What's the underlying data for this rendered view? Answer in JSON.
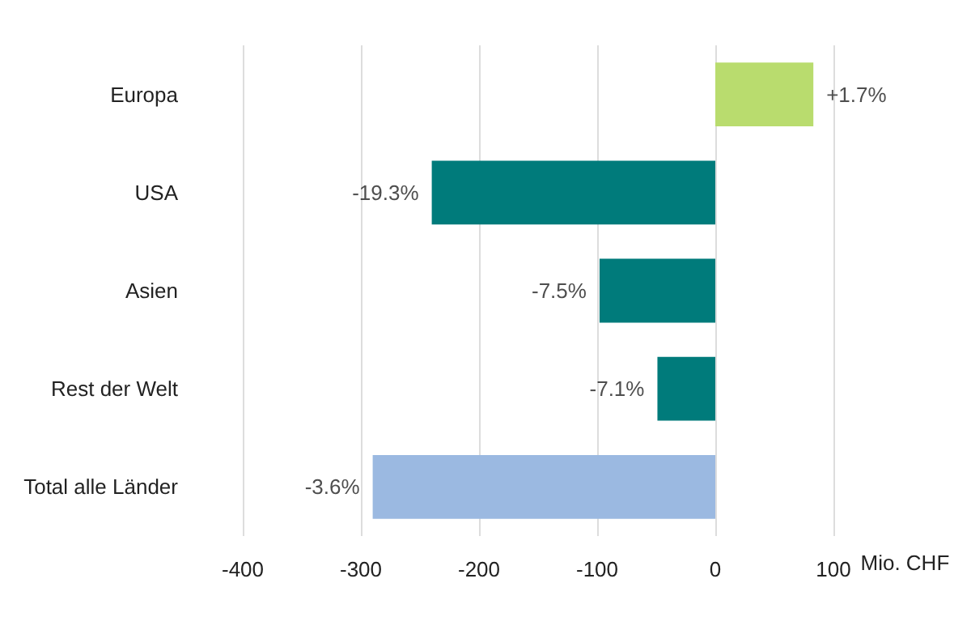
{
  "chart_data": {
    "type": "bar",
    "orientation": "horizontal",
    "categories": [
      "Europa",
      "USA",
      "Asien",
      "Rest der Welt",
      "Total alle Länder"
    ],
    "values": [
      83,
      -240,
      -98,
      -49,
      -290
    ],
    "colors": [
      "#b9dc6e",
      "#007b7b",
      "#007b7b",
      "#007b7b",
      "#9bb9e1"
    ],
    "annotations": [
      {
        "text": "+1.7%",
        "x": 83,
        "y": "Europa"
      },
      {
        "text": "-19.3%",
        "x": -240,
        "y": "USA"
      },
      {
        "text": "-7.5%",
        "x": -98,
        "y": "Asien"
      },
      {
        "text": "-7.1%",
        "x": -49,
        "y": "Rest der Welt"
      },
      {
        "text": "-3.6%",
        "x": -290,
        "y": "Total alle Länder"
      }
    ],
    "xlim": [
      -400,
      100
    ],
    "xticks": [
      -400,
      -300,
      -200,
      -100,
      0,
      100
    ],
    "xlabel": "Mio. CHF",
    "grid": "x"
  }
}
